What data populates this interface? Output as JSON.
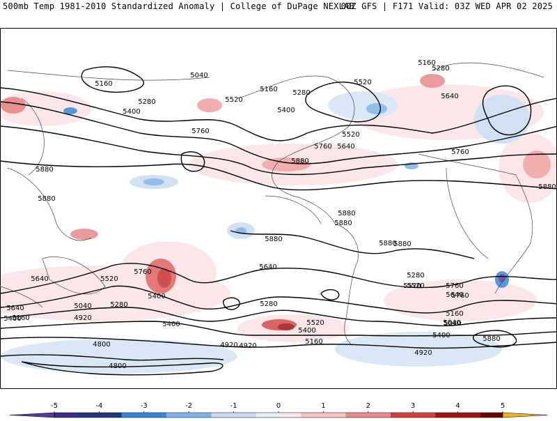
{
  "header": {
    "left_title": "500mb Temp 1981-2010 Standardized Anomaly | College of DuPage NEXLAB",
    "right_title": "00Z GFS | F171 Valid: 03Z WED APR 02 2025"
  },
  "contour_labels": [
    "5040",
    "5160",
    "5160",
    "5280",
    "5280",
    "5520",
    "5160",
    "5280",
    "5400",
    "5520",
    "5400",
    "5640",
    "5760",
    "5520",
    "5760",
    "5640",
    "5760",
    "5880",
    "5880",
    "5880",
    "5880",
    "5880",
    "5880",
    "5880",
    "5760",
    "5640",
    "5520",
    "5400",
    "5280",
    "5040",
    "5160",
    "4920",
    "4800",
    "4800",
    "5640",
    "5520",
    "5280",
    "5400",
    "5040",
    "4920",
    "5160",
    "5400",
    "5520",
    "5280",
    "5520",
    "5640",
    "5760",
    "5400",
    "5160",
    "5040",
    "4920",
    "4920",
    "5880",
    "5400",
    "5640",
    "5760",
    "5880",
    "5880"
  ],
  "colorbar": {
    "ticks": [
      "-5",
      "-4",
      "-3",
      "-2",
      "-1",
      "0",
      "1",
      "2",
      "3",
      "4",
      "5"
    ],
    "colors": [
      "#3b2a8a",
      "#203a78",
      "#3a86d8",
      "#7fb3e6",
      "#c6dcf2",
      "#e8f0f8",
      "#fbe9e9",
      "#f6c3c3",
      "#e88a8a",
      "#d43f3f",
      "#9e1515",
      "#6b0000"
    ],
    "end_colors": {
      "low": "#5b3a9a",
      "high": "#f2b320"
    }
  }
}
